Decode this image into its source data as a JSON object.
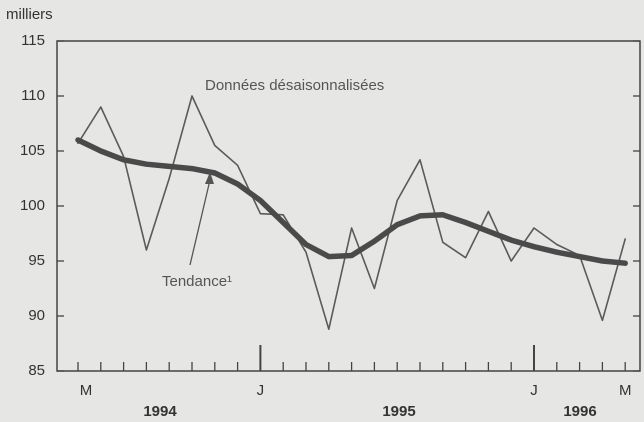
{
  "chart_data": {
    "type": "line",
    "y_label": "milliers",
    "categories": [
      "M",
      null,
      null,
      null,
      null,
      null,
      null,
      null,
      "J",
      null,
      null,
      null,
      null,
      null,
      null,
      null,
      null,
      null,
      null,
      null,
      "J",
      null,
      null,
      null,
      "M"
    ],
    "years": [
      "1994",
      "1995",
      "1996"
    ],
    "series": [
      {
        "name": "Données désaisonnalisées",
        "color": "#5a5a5a",
        "values": [
          105.7,
          109,
          104.5,
          96,
          102.5,
          110,
          105.5,
          103.7,
          99.3,
          99.2,
          95.8,
          88.8,
          98,
          92.5,
          100.5,
          104.2,
          96.7,
          95.3,
          99.5,
          95,
          98,
          96.5,
          95.5,
          89.6,
          97
        ]
      },
      {
        "name": "Tendance¹",
        "color": "#4a4a4a",
        "values": [
          106,
          105,
          104.2,
          103.8,
          103.6,
          103.4,
          103,
          102,
          100.5,
          98.5,
          96.5,
          95.4,
          95.5,
          96.8,
          98.3,
          99.1,
          99.2,
          98.5,
          97.7,
          96.9,
          96.3,
          95.8,
          95.4,
          95,
          94.8
        ]
      }
    ],
    "ylim": [
      85,
      115
    ],
    "yticks": [
      85,
      90,
      95,
      100,
      105,
      110,
      115
    ]
  }
}
